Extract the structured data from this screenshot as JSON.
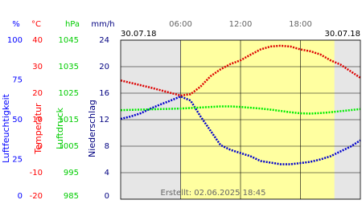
{
  "chart_data": {
    "type": "line",
    "x_start_label": "30.07.18",
    "x_end_label": "30.07.18",
    "footer": "Erstellt: 02.06.2025 18:45",
    "xlim": [
      0,
      24
    ],
    "xticks": [
      {
        "value": 6,
        "label": "06:00"
      },
      {
        "value": 12,
        "label": "12:00"
      },
      {
        "value": 18,
        "label": "18:00"
      }
    ],
    "daylight": [
      6,
      21.4
    ],
    "grid": true,
    "axes": [
      {
        "unit": "%",
        "label": "Luftfeuchtigkeit",
        "color": "#0000ff",
        "lim": [
          0,
          100
        ],
        "ticks": [
          0,
          25,
          50,
          75,
          100
        ]
      },
      {
        "unit": "°C",
        "label": "Temperatur",
        "color": "#ff0000",
        "lim": [
          -20,
          40
        ],
        "ticks": [
          -20,
          -10,
          0,
          10,
          20,
          30,
          40
        ]
      },
      {
        "unit": "hPa",
        "label": "Luftdruck",
        "color": "#00cc00",
        "lim": [
          985,
          1045
        ],
        "ticks": [
          985,
          995,
          1005,
          1015,
          1025,
          1035,
          1045
        ]
      },
      {
        "unit": "mm/h",
        "label": "Niederschlag",
        "color": "#000080",
        "lim": [
          0,
          24
        ],
        "ticks": [
          0,
          4,
          8,
          12,
          16,
          20,
          24
        ]
      }
    ],
    "x": [
      0,
      1,
      2,
      3,
      4,
      5,
      6,
      7,
      8,
      9,
      10,
      11,
      12,
      13,
      14,
      15,
      16,
      17,
      18,
      19,
      20,
      21,
      22,
      23,
      24
    ],
    "series": [
      {
        "axis": 1,
        "color": "#dd0000",
        "values": [
          24.8,
          23.9,
          23.0,
          22.1,
          21.1,
          20.1,
          19.1,
          19.6,
          22.5,
          26.4,
          29.0,
          31.0,
          32.4,
          34.5,
          36.5,
          37.6,
          37.9,
          37.6,
          36.5,
          35.8,
          34.6,
          32.4,
          30.8,
          28.3,
          25.8
        ]
      },
      {
        "axis": 0,
        "color": "#0000cc",
        "values": [
          50.5,
          52,
          54,
          57,
          59.6,
          62,
          64.6,
          62,
          52,
          43,
          34,
          31,
          29,
          27,
          24,
          23,
          22,
          22,
          22.7,
          23.5,
          25,
          27,
          30,
          33,
          37
        ]
      },
      {
        "axis": 2,
        "color": "#00ee00",
        "values": [
          1018.6,
          1018.7,
          1018.8,
          1018.9,
          1019.0,
          1019.1,
          1019.2,
          1019.4,
          1019.6,
          1019.8,
          1020.0,
          1020.0,
          1019.8,
          1019.5,
          1019.2,
          1018.8,
          1018.3,
          1017.8,
          1017.4,
          1017.3,
          1017.5,
          1017.8,
          1018.2,
          1018.6,
          1019.0
        ]
      }
    ]
  }
}
